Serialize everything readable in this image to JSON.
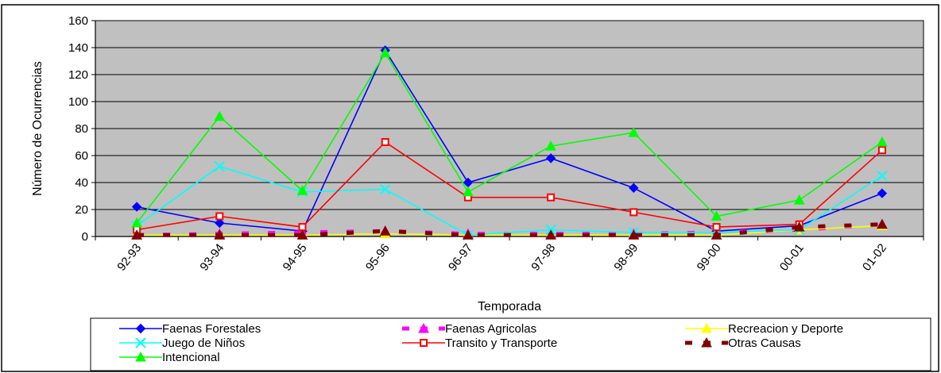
{
  "chart_data": {
    "type": "line",
    "title": "",
    "xlabel": "Temporada",
    "ylabel": "Número de Ocurrencias",
    "ylim": [
      0,
      160
    ],
    "yticks": [
      0,
      20,
      40,
      60,
      80,
      100,
      120,
      140,
      160
    ],
    "grid": true,
    "plot_background": "#c0c0c0",
    "legend_position": "bottom",
    "categories": [
      "92-93",
      "93-94",
      "94-95",
      "95-96",
      "96-97",
      "97-98",
      "98-99",
      "99-00",
      "00-01",
      "01-02"
    ],
    "series": [
      {
        "name": "Faenas Forestales",
        "color": "#0000ff",
        "marker": "diamond",
        "dashed": false,
        "values": [
          22,
          10,
          4,
          138,
          40,
          58,
          36,
          4,
          8,
          32
        ]
      },
      {
        "name": "Faenas Agricolas",
        "color": "#ff00ff",
        "marker": "triangle",
        "dashed": true,
        "values": [
          1,
          2,
          3,
          4,
          2,
          2,
          2,
          3,
          5,
          9
        ]
      },
      {
        "name": "Recreacion y Deporte",
        "color": "#ffff00",
        "marker": "triangle",
        "dashed": false,
        "values": [
          1,
          1,
          1,
          2,
          1,
          1,
          1,
          1,
          5,
          8
        ]
      },
      {
        "name": "Juego de Niños",
        "color": "#00ffff",
        "marker": "x",
        "dashed": false,
        "values": [
          8,
          52,
          33,
          35,
          1,
          5,
          3,
          3,
          5,
          45
        ]
      },
      {
        "name": "Transito y Transporte",
        "color": "#ff0000",
        "marker": "square",
        "dashed": false,
        "values": [
          5,
          15,
          7,
          70,
          29,
          29,
          18,
          7,
          9,
          64
        ]
      },
      {
        "name": "Otras Causas",
        "color": "#800000",
        "marker": "triangle",
        "dashed": true,
        "values": [
          1,
          1,
          1,
          4,
          1,
          1,
          1,
          1,
          7,
          9
        ]
      },
      {
        "name": "Intencional",
        "color": "#00ff00",
        "marker": "triangle",
        "dashed": false,
        "values": [
          10,
          89,
          34,
          136,
          33,
          67,
          77,
          15,
          27,
          70
        ]
      }
    ]
  }
}
